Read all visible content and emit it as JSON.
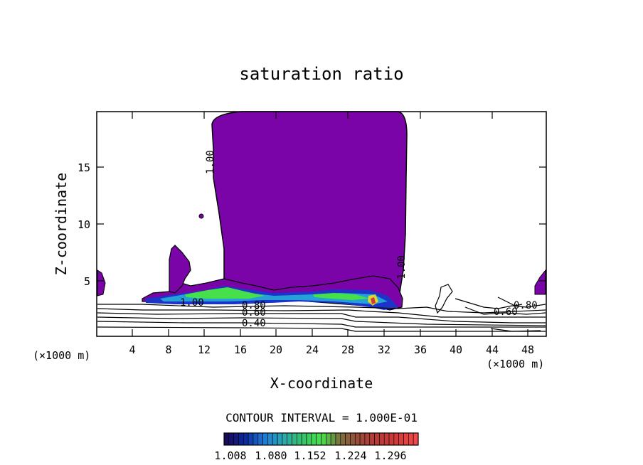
{
  "chart_data": {
    "type": "heatmap",
    "title": "saturation ratio",
    "xlabel": "X-coordinate",
    "ylabel": "Z-coordinate",
    "x_unit_left": "(×1000 m)",
    "x_unit_right": "(×1000 m)",
    "xlim": [
      0,
      50
    ],
    "ylim": [
      0,
      19.6
    ],
    "xticks": [
      4,
      8,
      12,
      16,
      20,
      24,
      28,
      32,
      36,
      40,
      44,
      48
    ],
    "yticks": [
      5,
      10,
      15
    ],
    "contour_interval_text": "CONTOUR INTERVAL = 1.000E-01",
    "colorbar": {
      "ticks": [
        "1.008",
        "1.080",
        "1.152",
        "1.224",
        "1.296"
      ],
      "colors": [
        "#1a0a5a",
        "#0c2a9c",
        "#1c7ad8",
        "#2aa7b0",
        "#34c36a",
        "#47e04a",
        "#7c7040",
        "#9a4a3a",
        "#b83a3a",
        "#d23a3a",
        "#f04a4a"
      ]
    },
    "contour_labels": [
      {
        "text": "1.00",
        "x": 12.4,
        "y": 15.6,
        "rotated": true
      },
      {
        "text": "1.00",
        "x": 10.8,
        "y": 3.0
      },
      {
        "text": "1.00",
        "x": 34.0,
        "y": 6.2,
        "rotated": true
      },
      {
        "text": "0.80",
        "x": 17.8,
        "y": 2.6
      },
      {
        "text": "0.60",
        "x": 17.8,
        "y": 2.0
      },
      {
        "text": "0.40",
        "x": 17.8,
        "y": 1.2
      },
      {
        "text": "0.80",
        "x": 47.3,
        "y": 2.6
      },
      {
        "text": "0.60",
        "x": 45.5,
        "y": 2.2
      }
    ],
    "saturated_region_color": "#7a04a8",
    "grid": false
  }
}
